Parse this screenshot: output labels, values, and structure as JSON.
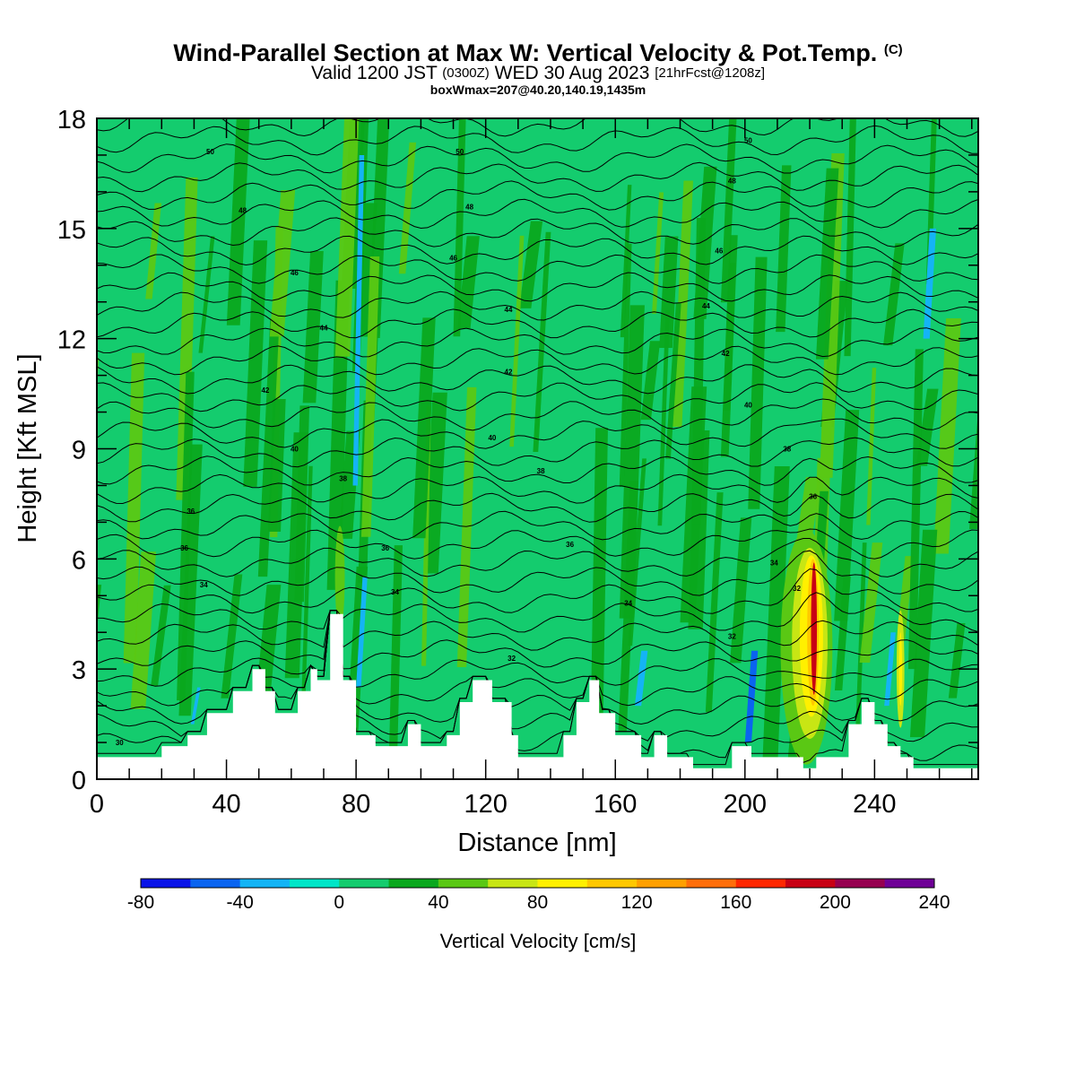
{
  "title": {
    "main": "Wind-Parallel Section at Max W: Vertical Velocity & Pot.Temp.",
    "copyright": "(C)",
    "valid_prefix": "Valid 1200 JST",
    "valid_z": "(0300Z)",
    "valid_date": "WED 30 Aug 2023",
    "fcst": "[21hrFcst@1208z]",
    "box": "boxWmax=207@40.20,140.19,1435m"
  },
  "chart_data": {
    "type": "heatmap",
    "xlabel": "Distance [nm]",
    "ylabel": "Height [Kft MSL]",
    "xlim": [
      0,
      272
    ],
    "ylim": [
      0,
      18
    ],
    "x_ticks": [
      "0",
      "40",
      "80",
      "120",
      "160",
      "200",
      "240"
    ],
    "y_ticks": [
      "0",
      "3",
      "6",
      "9",
      "12",
      "15",
      "18"
    ],
    "colorbar": {
      "label": "Vertical Velocity [cm/s]",
      "ticks": [
        "-80",
        "-40",
        "0",
        "40",
        "80",
        "120",
        "160",
        "200",
        "240"
      ],
      "bins": [
        -80,
        -60,
        -40,
        -20,
        0,
        20,
        40,
        60,
        80,
        100,
        120,
        140,
        160,
        180,
        200,
        220,
        240
      ],
      "colors": [
        "#0a14e8",
        "#0a64f0",
        "#14b4f5",
        "#00e6c8",
        "#14cc6e",
        "#0aa81e",
        "#5ac814",
        "#c8e614",
        "#fff000",
        "#ffc800",
        "#ffa000",
        "#ff6e0a",
        "#ff2800",
        "#c80014",
        "#960050",
        "#6e0096"
      ]
    },
    "background_value": 10,
    "terrain_kft": [
      [
        0,
        0.6
      ],
      [
        20,
        0.6
      ],
      [
        20,
        0.9
      ],
      [
        28,
        0.9
      ],
      [
        28,
        1.2
      ],
      [
        34,
        1.2
      ],
      [
        34,
        1.8
      ],
      [
        42,
        1.8
      ],
      [
        42,
        2.4
      ],
      [
        48,
        2.4
      ],
      [
        48,
        3.0
      ],
      [
        52,
        3.0
      ],
      [
        52,
        2.4
      ],
      [
        55,
        2.4
      ],
      [
        55,
        1.8
      ],
      [
        62,
        1.8
      ],
      [
        62,
        2.4
      ],
      [
        66,
        2.4
      ],
      [
        66,
        3.0
      ],
      [
        68,
        3.0
      ],
      [
        68,
        2.7
      ],
      [
        72,
        2.7
      ],
      [
        72,
        4.5
      ],
      [
        76,
        4.5
      ],
      [
        76,
        2.7
      ],
      [
        80,
        2.7
      ],
      [
        80,
        1.2
      ],
      [
        86,
        1.2
      ],
      [
        86,
        0.9
      ],
      [
        96,
        0.9
      ],
      [
        96,
        1.5
      ],
      [
        100,
        1.5
      ],
      [
        100,
        0.9
      ],
      [
        108,
        0.9
      ],
      [
        108,
        1.2
      ],
      [
        112,
        1.2
      ],
      [
        112,
        2.1
      ],
      [
        116,
        2.1
      ],
      [
        116,
        2.7
      ],
      [
        122,
        2.7
      ],
      [
        122,
        2.1
      ],
      [
        128,
        2.1
      ],
      [
        128,
        1.2
      ],
      [
        130,
        1.2
      ],
      [
        130,
        0.6
      ],
      [
        144,
        0.6
      ],
      [
        144,
        1.2
      ],
      [
        148,
        1.2
      ],
      [
        148,
        2.1
      ],
      [
        152,
        2.1
      ],
      [
        152,
        2.7
      ],
      [
        155,
        2.7
      ],
      [
        155,
        1.8
      ],
      [
        160,
        1.8
      ],
      [
        160,
        1.2
      ],
      [
        168,
        1.2
      ],
      [
        168,
        0.6
      ],
      [
        172,
        0.6
      ],
      [
        172,
        1.2
      ],
      [
        176,
        1.2
      ],
      [
        176,
        0.6
      ],
      [
        184,
        0.6
      ],
      [
        184,
        0.3
      ],
      [
        196,
        0.3
      ],
      [
        196,
        0.9
      ],
      [
        202,
        0.9
      ],
      [
        202,
        0.6
      ],
      [
        218,
        0.6
      ],
      [
        218,
        0.3
      ],
      [
        222,
        0.3
      ],
      [
        222,
        0.6
      ],
      [
        232,
        0.6
      ],
      [
        232,
        1.5
      ],
      [
        236,
        1.5
      ],
      [
        236,
        2.1
      ],
      [
        240,
        2.1
      ],
      [
        240,
        1.5
      ],
      [
        244,
        1.5
      ],
      [
        244,
        0.9
      ],
      [
        248,
        0.9
      ],
      [
        248,
        0.6
      ],
      [
        252,
        0.6
      ],
      [
        252,
        0.3
      ],
      [
        272,
        0.3
      ]
    ],
    "theta_levels": [
      30,
      32,
      34,
      36,
      38,
      40,
      42,
      44,
      46,
      48,
      50
    ],
    "theta_labels": [
      {
        "text": "30",
        "x": 7,
        "y": 1.0
      },
      {
        "text": "32",
        "x": 128,
        "y": 3.3
      },
      {
        "text": "32",
        "x": 196,
        "y": 3.9
      },
      {
        "text": "32",
        "x": 216,
        "y": 5.2
      },
      {
        "text": "34",
        "x": 33,
        "y": 5.3
      },
      {
        "text": "34",
        "x": 92,
        "y": 5.1
      },
      {
        "text": "34",
        "x": 164,
        "y": 4.8
      },
      {
        "text": "34",
        "x": 209,
        "y": 5.9
      },
      {
        "text": "36",
        "x": 27,
        "y": 6.3
      },
      {
        "text": "36",
        "x": 89,
        "y": 6.3
      },
      {
        "text": "36",
        "x": 146,
        "y": 6.4
      },
      {
        "text": "36",
        "x": 221,
        "y": 7.7
      },
      {
        "text": "36",
        "x": 29,
        "y": 7.3
      },
      {
        "text": "38",
        "x": 76,
        "y": 8.2
      },
      {
        "text": "38",
        "x": 137,
        "y": 8.4
      },
      {
        "text": "38",
        "x": 213,
        "y": 9.0
      },
      {
        "text": "40",
        "x": 61,
        "y": 9.0
      },
      {
        "text": "40",
        "x": 122,
        "y": 9.3
      },
      {
        "text": "40",
        "x": 201,
        "y": 10.2
      },
      {
        "text": "42",
        "x": 52,
        "y": 10.6
      },
      {
        "text": "42",
        "x": 127,
        "y": 11.1
      },
      {
        "text": "42",
        "x": 194,
        "y": 11.6
      },
      {
        "text": "44",
        "x": 70,
        "y": 12.3
      },
      {
        "text": "44",
        "x": 127,
        "y": 12.8
      },
      {
        "text": "44",
        "x": 188,
        "y": 12.9
      },
      {
        "text": "46",
        "x": 61,
        "y": 13.8
      },
      {
        "text": "46",
        "x": 110,
        "y": 14.2
      },
      {
        "text": "46",
        "x": 192,
        "y": 14.4
      },
      {
        "text": "48",
        "x": 45,
        "y": 15.5
      },
      {
        "text": "48",
        "x": 115,
        "y": 15.6
      },
      {
        "text": "48",
        "x": 196,
        "y": 16.3
      },
      {
        "text": "50",
        "x": 35,
        "y": 17.1
      },
      {
        "text": "50",
        "x": 112,
        "y": 17.1
      },
      {
        "text": "50",
        "x": 201,
        "y": 17.4
      }
    ],
    "updraft_peak": {
      "x": 221,
      "y": 3.5,
      "value": 207
    }
  }
}
